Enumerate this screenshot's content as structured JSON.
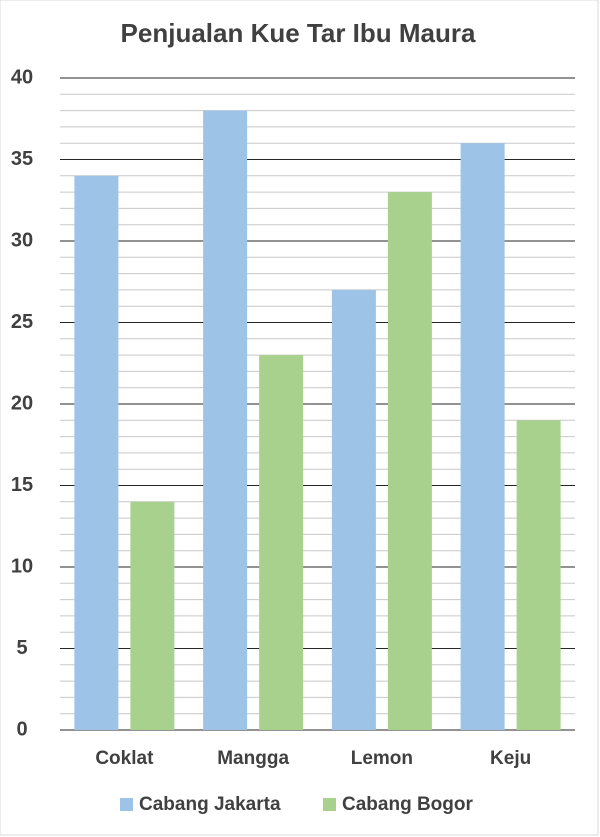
{
  "chart_data": {
    "type": "bar",
    "title": "Penjualan Kue Tar Ibu Maura",
    "categories": [
      "Coklat",
      "Mangga",
      "Lemon",
      "Keju"
    ],
    "series": [
      {
        "name": "Cabang Jakarta",
        "color": "#9dc3e6",
        "values": [
          34,
          38,
          27,
          36
        ]
      },
      {
        "name": "Cabang Bogor",
        "color": "#a9d18e",
        "values": [
          14,
          23,
          33,
          19
        ]
      }
    ],
    "ylim": [
      0,
      40
    ],
    "yticks": [
      0,
      5,
      10,
      15,
      20,
      25,
      30,
      35,
      40
    ],
    "grid": true,
    "minor_grid": true,
    "legend": "bottom"
  }
}
